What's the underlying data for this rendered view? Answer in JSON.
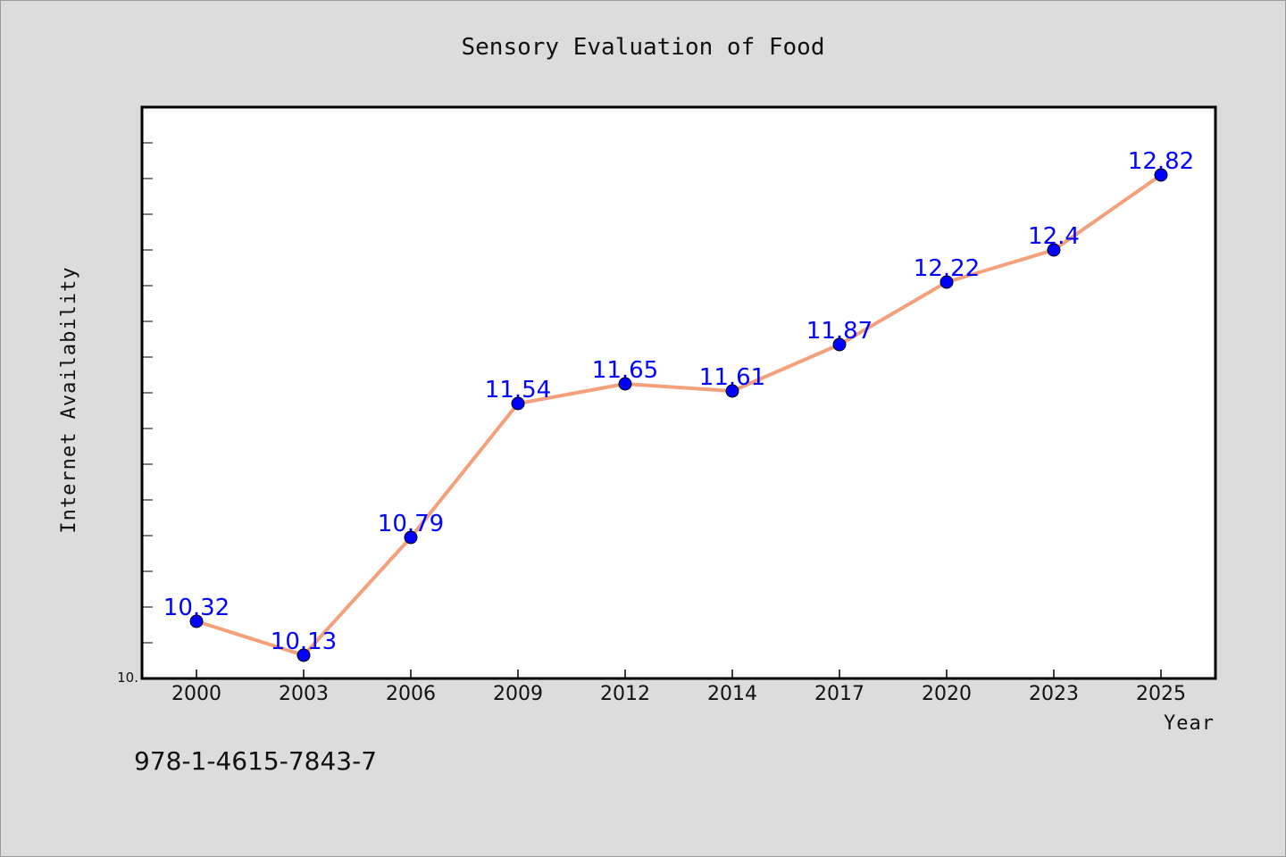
{
  "chart_data": {
    "type": "line",
    "title": "Sensory Evaluation of Food",
    "xlabel": "Year",
    "ylabel": "Internet Availability",
    "categories": [
      "2000",
      "2003",
      "2006",
      "2009",
      "2012",
      "2014",
      "2017",
      "2020",
      "2023",
      "2025"
    ],
    "series": [
      {
        "values": [
          10.32,
          10.13,
          10.79,
          11.54,
          11.65,
          11.61,
          11.87,
          12.22,
          12.4,
          12.82
        ],
        "labels": [
          "10.32",
          "10.13",
          "10.79",
          "11.54",
          "11.65",
          "11.61",
          "11.87",
          "12.22",
          "12.4",
          "12.82"
        ],
        "line_color": "#f4a07a",
        "marker_color": "#0000ff"
      }
    ],
    "ylim": [
      10.0,
      13.2
    ],
    "yticks_labeled": [
      "10."
    ],
    "grid": false,
    "legend": "none"
  },
  "footer": {
    "isbn": "978-1-4615-7843-7"
  }
}
